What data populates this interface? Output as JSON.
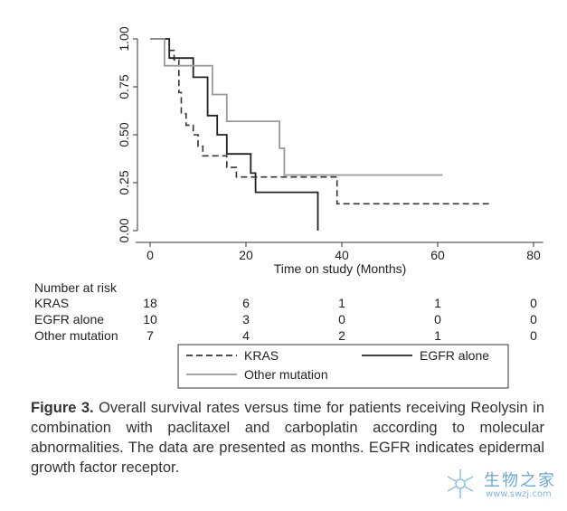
{
  "chart_data": {
    "type": "line",
    "subtype": "kaplan-meier",
    "xlabel": "Time on study (Months)",
    "ylabel": "",
    "xlim": [
      -3,
      82
    ],
    "ylim": [
      0,
      1.0
    ],
    "xticks": [
      0,
      20,
      40,
      60,
      80
    ],
    "yticks": [
      0.0,
      0.25,
      0.5,
      0.75,
      1.0
    ],
    "xtick_labels": [
      "0",
      "20",
      "40",
      "60",
      "80"
    ],
    "ytick_labels": [
      "0.00",
      "0.25",
      "0.50",
      "0.75",
      "1.00"
    ],
    "grid": false,
    "series": [
      {
        "name": "KRAS",
        "style": "dashed",
        "color": "#333333",
        "steps": [
          [
            0,
            1.0
          ],
          [
            4,
            0.94
          ],
          [
            5,
            0.89
          ],
          [
            6,
            0.72
          ],
          [
            6.5,
            0.61
          ],
          [
            7.5,
            0.55
          ],
          [
            9,
            0.5
          ],
          [
            10,
            0.44
          ],
          [
            11,
            0.39
          ],
          [
            16,
            0.33
          ],
          [
            18,
            0.28
          ],
          [
            39,
            0.28
          ],
          [
            39,
            0.14
          ],
          [
            71,
            0.14
          ]
        ]
      },
      {
        "name": "EGFR alone",
        "style": "solid",
        "color": "#222222",
        "steps": [
          [
            0,
            1.0
          ],
          [
            4,
            0.9
          ],
          [
            9,
            0.8
          ],
          [
            12,
            0.6
          ],
          [
            14,
            0.5
          ],
          [
            16,
            0.4
          ],
          [
            21,
            0.3
          ],
          [
            22,
            0.2
          ],
          [
            35,
            0.2
          ],
          [
            35,
            0.0
          ]
        ]
      },
      {
        "name": "Other mutation",
        "style": "solid",
        "color": "#9a9a9a",
        "steps": [
          [
            0,
            1.0
          ],
          [
            3,
            0.86
          ],
          [
            11,
            0.86
          ],
          [
            13,
            0.71
          ],
          [
            16,
            0.57
          ],
          [
            26,
            0.57
          ],
          [
            27,
            0.43
          ],
          [
            28,
            0.29
          ],
          [
            61,
            0.29
          ]
        ]
      }
    ],
    "risk_table": {
      "title": "Number at risk",
      "rows": [
        {
          "label": "KRAS",
          "values": [
            "18",
            "6",
            "1",
            "1",
            "0"
          ]
        },
        {
          "label": "EGFR alone",
          "values": [
            "10",
            "3",
            "0",
            "0",
            "0"
          ]
        },
        {
          "label": "Other mutation",
          "values": [
            "7",
            "4",
            "2",
            "1",
            "0"
          ]
        }
      ]
    },
    "legend_placement": "bottom"
  },
  "caption": {
    "label": "Figure 3.",
    "text": " Overall survival rates versus time for patients receiving Reolysin in combination with paclitaxel and carboplatin according to molecular abnormalities. The data are presented as months. EGFR indicates epidermal growth factor receptor."
  },
  "watermark": {
    "main": "生物之家",
    "url": "www.swzj.com"
  }
}
